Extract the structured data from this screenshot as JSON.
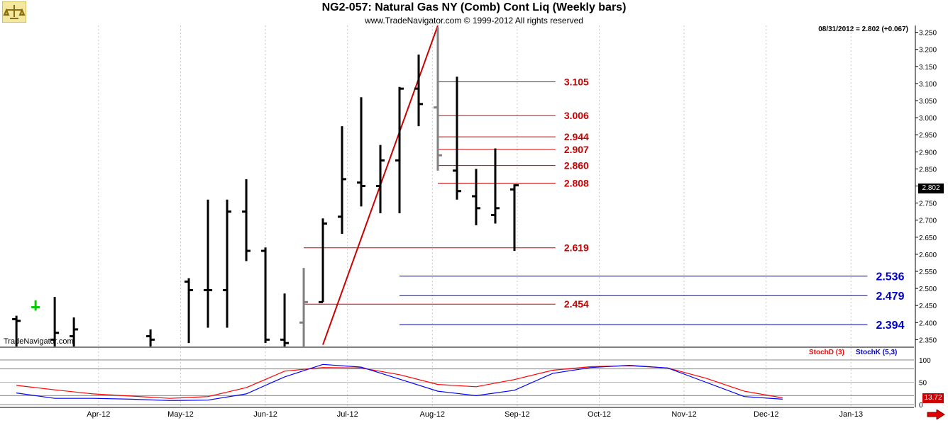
{
  "header": {
    "title": "NG2-057:  Natural Gas NY (Comb) Cont Liq  (Weekly bars)",
    "copyright": "www.TradeNavigator.com © 1999-2012 All rights reserved",
    "last_info": "08/31/2012 = 2.802 (+0.067)",
    "watermark": "TradeNavigator.com"
  },
  "colors": {
    "bar": "#000000",
    "bar_gray": "#808080",
    "bar_green": "#00cc00",
    "red_level": "#cc0000",
    "blue_level": "#0000cc",
    "trendline": "#cc0000",
    "grid": "#c8c8c8",
    "stoch_d": "#ff0000",
    "stoch_k": "#0000ff"
  },
  "price_tag": "2.802",
  "stoch_tag": "13.72",
  "stoch_labels": {
    "d": "StochD (3)",
    "k": "StochK (5,3)"
  },
  "chart_data": [
    {
      "type": "ohlc",
      "title": "NG2-057:  Natural Gas NY (Comb) Cont Liq  (Weekly bars)",
      "y_axis_side": "right",
      "ylim": [
        2.33,
        3.27
      ],
      "y_ticks": [
        "3.250",
        "3.200",
        "3.150",
        "3.100",
        "3.050",
        "3.000",
        "2.950",
        "2.900",
        "2.850",
        "2.800",
        "2.750",
        "2.700",
        "2.650",
        "2.600",
        "2.550",
        "2.500",
        "2.450",
        "2.400",
        "2.350"
      ],
      "x_labels": [
        "Apr-12",
        "May-12",
        "Jun-12",
        "Jul-12",
        "Aug-12",
        "Sep-12",
        "Oct-12",
        "Nov-12",
        "Dec-12",
        "Jan-13"
      ],
      "bars": [
        {
          "date": "2012-03-02",
          "open": 2.41,
          "high": 2.42,
          "low": 2.33,
          "close": 2.405,
          "color": "bar"
        },
        {
          "date": "2012-03-09",
          "open": 2.445,
          "high": 2.465,
          "low": 2.435,
          "close": 2.445,
          "color": "bar_green"
        },
        {
          "date": "2012-03-16",
          "open": 2.35,
          "high": 2.475,
          "low": 2.33,
          "close": 2.37,
          "color": "bar"
        },
        {
          "date": "2012-03-23",
          "open": 2.36,
          "high": 2.415,
          "low": 2.33,
          "close": 2.38,
          "color": "bar"
        },
        {
          "date": "2012-04-20",
          "open": 2.36,
          "high": 2.38,
          "low": 2.33,
          "close": 2.35,
          "color": "bar"
        },
        {
          "date": "2012-05-04",
          "open": 2.52,
          "high": 2.53,
          "low": 2.34,
          "close": 2.495,
          "color": "bar"
        },
        {
          "date": "2012-05-11",
          "open": 2.495,
          "high": 2.76,
          "low": 2.385,
          "close": 2.495,
          "color": "bar"
        },
        {
          "date": "2012-05-18",
          "open": 2.495,
          "high": 2.76,
          "low": 2.385,
          "close": 2.725,
          "color": "bar"
        },
        {
          "date": "2012-05-25",
          "open": 2.725,
          "high": 2.82,
          "low": 2.58,
          "close": 2.61,
          "color": "bar"
        },
        {
          "date": "2012-06-01",
          "open": 2.61,
          "high": 2.62,
          "low": 2.34,
          "close": 2.35,
          "color": "bar"
        },
        {
          "date": "2012-06-08",
          "open": 2.35,
          "high": 2.485,
          "low": 2.33,
          "close": 2.34,
          "color": "bar"
        },
        {
          "date": "2012-06-15",
          "open": 2.4,
          "high": 2.56,
          "low": 2.33,
          "close": 2.46,
          "color": "bar_gray"
        },
        {
          "date": "2012-06-22",
          "open": 2.46,
          "high": 2.705,
          "low": 2.46,
          "close": 2.69,
          "color": "bar"
        },
        {
          "date": "2012-06-29",
          "open": 2.71,
          "high": 2.975,
          "low": 2.66,
          "close": 2.82,
          "color": "bar"
        },
        {
          "date": "2012-07-06",
          "open": 2.81,
          "high": 3.06,
          "low": 2.74,
          "close": 2.8,
          "color": "bar"
        },
        {
          "date": "2012-07-13",
          "open": 2.8,
          "high": 2.92,
          "low": 2.72,
          "close": 2.875,
          "color": "bar"
        },
        {
          "date": "2012-07-20",
          "open": 2.875,
          "high": 3.09,
          "low": 2.72,
          "close": 3.085,
          "color": "bar"
        },
        {
          "date": "2012-07-27",
          "open": 3.085,
          "high": 3.185,
          "low": 2.975,
          "close": 3.04,
          "color": "bar"
        },
        {
          "date": "2012-08-03",
          "open": 3.03,
          "high": 3.265,
          "low": 2.845,
          "close": 2.89,
          "color": "bar_gray"
        },
        {
          "date": "2012-08-10",
          "open": 2.845,
          "high": 3.12,
          "low": 2.76,
          "close": 2.785,
          "color": "bar"
        },
        {
          "date": "2012-08-17",
          "open": 2.77,
          "high": 2.85,
          "low": 2.685,
          "close": 2.735,
          "color": "bar"
        },
        {
          "date": "2012-08-24",
          "open": 2.715,
          "high": 2.91,
          "low": 2.69,
          "close": 2.735,
          "color": "bar"
        },
        {
          "date": "2012-08-31",
          "open": 2.79,
          "high": 2.805,
          "low": 2.61,
          "close": 2.802,
          "color": "bar"
        }
      ],
      "trendline": {
        "from": {
          "date": "2012-06-22",
          "price": 2.335
        },
        "to": {
          "date": "2012-08-03",
          "price": 3.27
        }
      },
      "levels": [
        {
          "label": "3.105",
          "value": 3.105,
          "color": "red_level",
          "from": "2012-08-03",
          "to": "2012-09-15"
        },
        {
          "label": "3.006",
          "value": 3.006,
          "color": "red_level",
          "from": "2012-08-03",
          "to": "2012-09-15"
        },
        {
          "label": "2.944",
          "value": 2.944,
          "color": "red_level",
          "from": "2012-08-03",
          "to": "2012-09-15"
        },
        {
          "label": "2.907",
          "value": 2.907,
          "color": "red_level",
          "from": "2012-08-03",
          "to": "2012-09-15"
        },
        {
          "label": "2.860",
          "value": 2.86,
          "color": "red_level",
          "from": "2012-08-03",
          "to": "2012-09-15"
        },
        {
          "label": "2.808",
          "value": 2.808,
          "color": "red_level",
          "from": "2012-08-03",
          "to": "2012-09-15"
        },
        {
          "label": "2.619",
          "value": 2.619,
          "color": "red_level",
          "from": "2012-06-15",
          "to": "2012-09-15"
        },
        {
          "label": "2.536",
          "value": 2.536,
          "color": "blue_level",
          "from": "2012-07-20",
          "to": "2013-01-07"
        },
        {
          "label": "2.479",
          "value": 2.479,
          "color": "blue_level",
          "from": "2012-07-20",
          "to": "2013-01-07"
        },
        {
          "label": "2.454",
          "value": 2.454,
          "color": "red_level",
          "from": "2012-06-15",
          "to": "2012-09-15"
        },
        {
          "label": "2.394",
          "value": 2.394,
          "color": "blue_level",
          "from": "2012-07-20",
          "to": "2013-01-07"
        }
      ]
    },
    {
      "type": "line",
      "title": "",
      "ylim": [
        0,
        100
      ],
      "y_ticks": [
        "100",
        "50",
        "0"
      ],
      "series": [
        {
          "name": "StochD (3)",
          "color": "stoch_d",
          "points": [
            [
              "2012-03-02",
              43
            ],
            [
              "2012-03-16",
              33
            ],
            [
              "2012-03-30",
              24
            ],
            [
              "2012-04-13",
              19
            ],
            [
              "2012-04-27",
              14
            ],
            [
              "2012-05-11",
              18
            ],
            [
              "2012-05-25",
              38
            ],
            [
              "2012-06-08",
              75
            ],
            [
              "2012-06-22",
              83
            ],
            [
              "2012-07-06",
              82
            ],
            [
              "2012-07-20",
              67
            ],
            [
              "2012-08-03",
              45
            ],
            [
              "2012-08-17",
              40
            ],
            [
              "2012-08-31",
              56
            ],
            [
              "2012-09-14",
              77
            ],
            [
              "2012-09-28",
              85
            ],
            [
              "2012-10-12",
              87
            ],
            [
              "2012-10-26",
              82
            ],
            [
              "2012-11-09",
              59
            ],
            [
              "2012-11-23",
              30
            ],
            [
              "2012-12-07",
              15
            ]
          ]
        },
        {
          "name": "StochK (5,3)",
          "color": "stoch_k",
          "points": [
            [
              "2012-03-02",
              26
            ],
            [
              "2012-03-16",
              14
            ],
            [
              "2012-03-30",
              14
            ],
            [
              "2012-04-13",
              12
            ],
            [
              "2012-04-27",
              9
            ],
            [
              "2012-05-11",
              10
            ],
            [
              "2012-05-25",
              24
            ],
            [
              "2012-06-08",
              62
            ],
            [
              "2012-06-22",
              90
            ],
            [
              "2012-07-06",
              84
            ],
            [
              "2012-07-20",
              57
            ],
            [
              "2012-08-03",
              30
            ],
            [
              "2012-08-17",
              20
            ],
            [
              "2012-08-31",
              32
            ],
            [
              "2012-09-14",
              70
            ],
            [
              "2012-09-28",
              83
            ],
            [
              "2012-10-12",
              88
            ],
            [
              "2012-10-26",
              82
            ],
            [
              "2012-11-09",
              50
            ],
            [
              "2012-11-23",
              18
            ],
            [
              "2012-12-07",
              12
            ]
          ]
        }
      ]
    }
  ]
}
